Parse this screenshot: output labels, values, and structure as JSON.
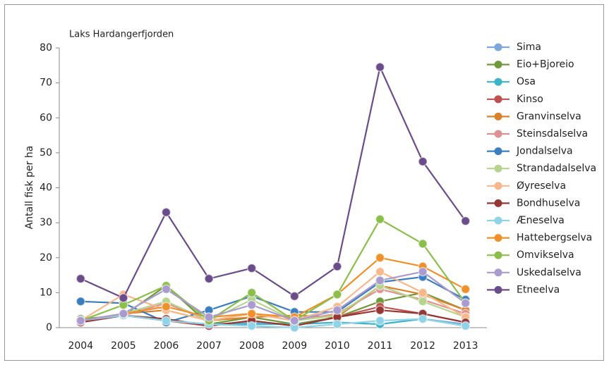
{
  "chart_data": {
    "type": "line",
    "title": "Laks Hardangerfjorden",
    "y_label": "Antall fisk per ha",
    "categories": [
      "2004",
      "2005",
      "2006",
      "2007",
      "2008",
      "2009",
      "2010",
      "2011",
      "2012",
      "2013"
    ],
    "ylim": [
      0,
      80
    ],
    "yticks": [
      0,
      10,
      20,
      30,
      40,
      50,
      60,
      70,
      80
    ],
    "legend": "right",
    "series": [
      {
        "name": "Sima",
        "color": "#7ba7d9",
        "values": [
          2,
          3.5,
          2,
          1,
          1.5,
          1,
          1.5,
          1,
          2.5,
          1
        ]
      },
      {
        "name": "Eio+Bjoreio",
        "color": "#6e9a3a",
        "values": [
          2.5,
          3.5,
          12,
          1,
          3,
          1,
          3,
          7.5,
          10,
          5
        ]
      },
      {
        "name": "Osa",
        "color": "#3bb3c8",
        "values": [
          2,
          3.5,
          2,
          1,
          1,
          1,
          1.5,
          1,
          2.5,
          0.5
        ]
      },
      {
        "name": "Kinso",
        "color": "#c0504d",
        "values": [
          1.5,
          3.5,
          2,
          0.5,
          2,
          0.5,
          3,
          6,
          4,
          1.5
        ]
      },
      {
        "name": "Granvinselva",
        "color": "#d9822b",
        "values": [
          2,
          4,
          5,
          2,
          3,
          3.5,
          3,
          12,
          9.5,
          5
        ]
      },
      {
        "name": "Steinsdalselva",
        "color": "#e09090",
        "values": [
          2,
          3.5,
          7,
          2,
          4,
          2,
          4,
          11,
          8,
          4
        ]
      },
      {
        "name": "Jondalselva",
        "color": "#3a7ebf",
        "values": [
          7.5,
          7,
          1.5,
          5,
          9,
          4.5,
          4.5,
          13,
          14.5,
          8
        ]
      },
      {
        "name": "Strandadalselva",
        "color": "#b6d48e",
        "values": [
          2,
          4,
          7.5,
          2,
          8,
          2,
          3.5,
          12,
          7.5,
          3
        ]
      },
      {
        "name": "Øyreselva",
        "color": "#f8b88a",
        "values": [
          2,
          9.5,
          5,
          2,
          4,
          2,
          6,
          16,
          10,
          3
        ]
      },
      {
        "name": "Bondhuselva",
        "color": "#953735",
        "values": [
          1.5,
          3.5,
          2.5,
          0.5,
          2,
          0.5,
          3,
          5,
          4,
          1.5
        ]
      },
      {
        "name": "Æneselva",
        "color": "#8fd3e8",
        "values": [
          2,
          3.5,
          2,
          1,
          0.5,
          0,
          1,
          2,
          2.5,
          0.5
        ]
      },
      {
        "name": "Hattebergselva",
        "color": "#f0902a",
        "values": [
          2,
          4,
          6,
          3,
          4,
          3,
          9.5,
          20,
          17.5,
          11
        ]
      },
      {
        "name": "Omvikselva",
        "color": "#8cbf4a",
        "values": [
          2,
          6.5,
          12,
          2,
          10,
          2,
          9.5,
          31,
          24,
          7
        ]
      },
      {
        "name": "Uskedalselva",
        "color": "#a99bd0",
        "values": [
          2,
          4,
          11,
          3,
          6.5,
          2,
          5,
          13.5,
          16,
          7
        ]
      },
      {
        "name": "Etneelva",
        "color": "#6b4c8a",
        "values": [
          14,
          8.5,
          33,
          14,
          17,
          9,
          17.5,
          74.5,
          47.5,
          30.5
        ]
      }
    ]
  }
}
